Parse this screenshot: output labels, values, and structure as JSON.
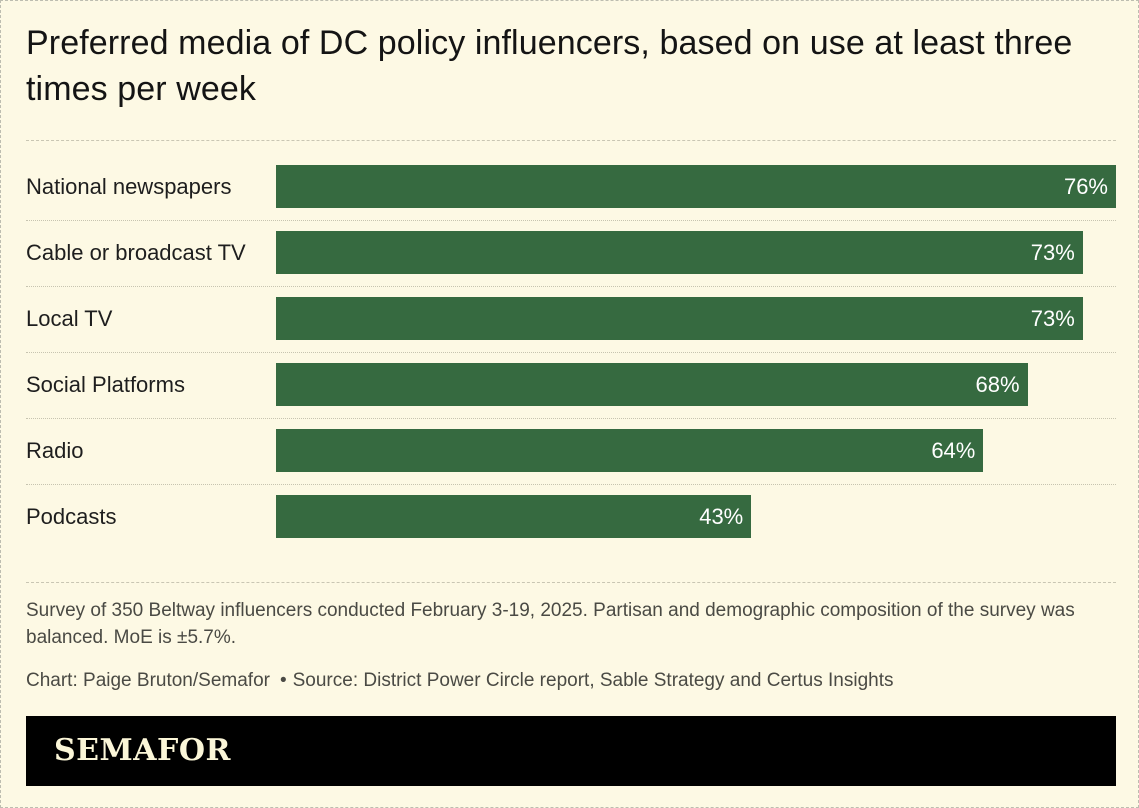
{
  "title": "Preferred media of DC policy influencers, based on use at least three times per week",
  "chart_data": {
    "type": "bar",
    "orientation": "horizontal",
    "categories": [
      "National newspapers",
      "Cable or broadcast TV",
      "Local TV",
      "Social Platforms",
      "Radio",
      "Podcasts"
    ],
    "values": [
      76,
      73,
      73,
      68,
      64,
      43
    ],
    "value_labels": [
      "76%",
      "73%",
      "73%",
      "68%",
      "64%",
      "43%"
    ],
    "unit": "%",
    "xlim": [
      0,
      76
    ],
    "bar_color": "#366a40",
    "grid": false,
    "legend": "none",
    "title": "Preferred media of DC policy influencers, based on use at least three times per week"
  },
  "note": "Survey of 350 Beltway influencers conducted February 3-19, 2025. Partisan and demographic composition of the survey was balanced. MoE is ±5.7%.",
  "credit": {
    "chart": "Chart: Paige Bruton/Semafor",
    "separator": "•",
    "source": "Source: District Power Circle report, Sable Strategy and Certus Insights"
  },
  "footer": {
    "logo_text": "SEMAFOR",
    "background": "#000000",
    "logo_color": "#fbf6d8"
  },
  "colors": {
    "background": "#fdf9e4",
    "bar": "#366a40"
  }
}
